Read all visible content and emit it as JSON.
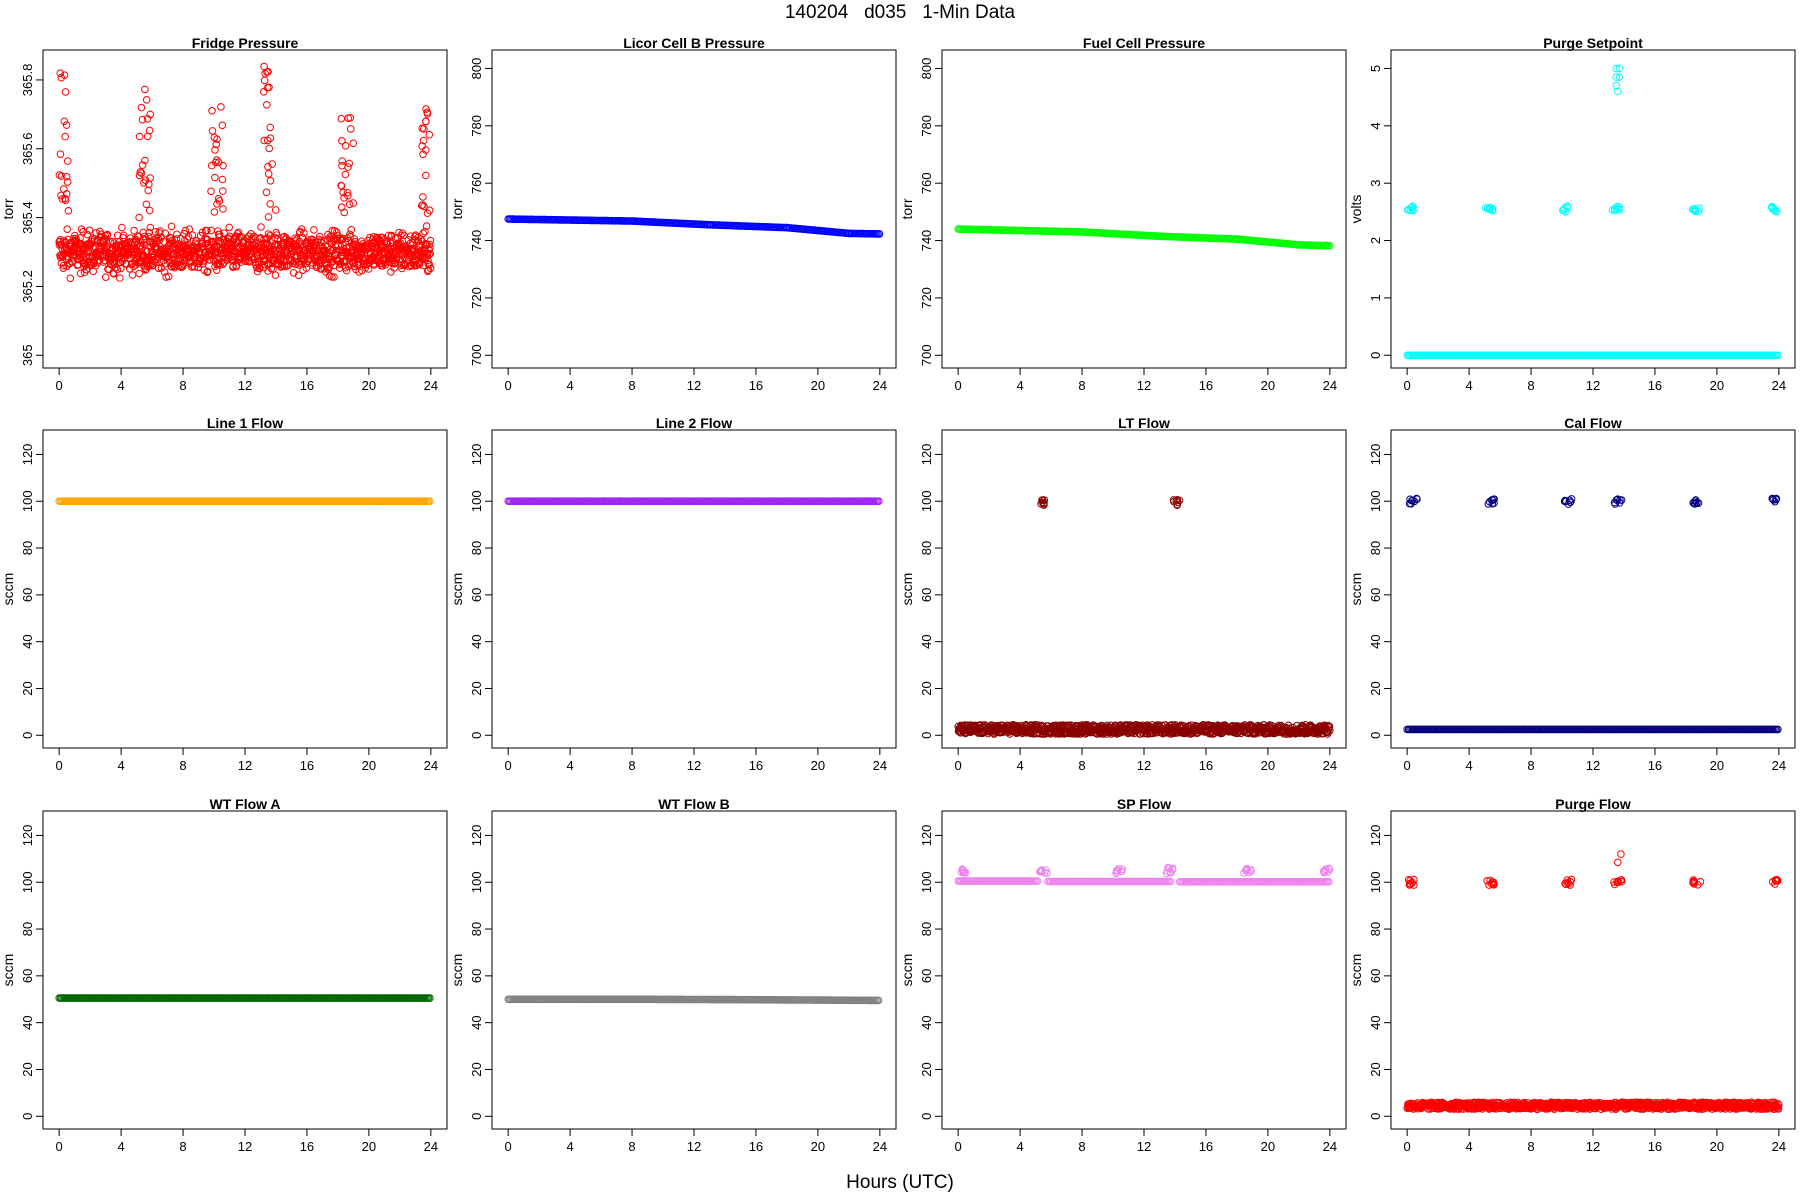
{
  "figure": {
    "title": "140204   d035   1-Min Data",
    "x_label": "Hours (UTC)"
  },
  "chart_data": [
    {
      "id": "fridge",
      "type": "scatter",
      "title": "Fridge Pressure",
      "ylabel": "torr",
      "xlim": [
        0,
        24
      ],
      "ylim": [
        365.0,
        365.85
      ],
      "yticks": [
        365.0,
        365.2,
        365.4,
        365.6,
        365.8
      ],
      "xticks": [
        0,
        4,
        8,
        12,
        16,
        20,
        24
      ],
      "color": "#ff0000",
      "series": [
        {
          "kind": "noise",
          "baseline": 365.3,
          "spread": 0.1,
          "spikes": [
            [
              0.2,
              365.82
            ],
            [
              5.5,
              365.78
            ],
            [
              10.2,
              365.73
            ],
            [
              13.6,
              365.84
            ],
            [
              18.6,
              365.7
            ],
            [
              23.8,
              365.73
            ]
          ]
        }
      ]
    },
    {
      "id": "licor",
      "type": "scatter",
      "title": "Licor Cell B Pressure",
      "ylabel": "torr",
      "xlim": [
        0,
        24
      ],
      "ylim": [
        700,
        802
      ],
      "yticks": [
        700,
        720,
        740,
        760,
        780,
        800
      ],
      "xticks": [
        0,
        4,
        8,
        12,
        16,
        20,
        24
      ],
      "color": "#0000ff",
      "series": [
        {
          "kind": "line",
          "points": [
            [
              0,
              747.5
            ],
            [
              8,
              746.8
            ],
            [
              13,
              745.5
            ],
            [
              18,
              744.5
            ],
            [
              22,
              742.5
            ],
            [
              24,
              742.3
            ]
          ]
        }
      ]
    },
    {
      "id": "fuel",
      "type": "scatter",
      "title": "Fuel Cell Pressure",
      "ylabel": "torr",
      "xlim": [
        0,
        24
      ],
      "ylim": [
        700,
        802
      ],
      "yticks": [
        700,
        720,
        740,
        760,
        780,
        800
      ],
      "xticks": [
        0,
        4,
        8,
        12,
        16,
        20,
        24
      ],
      "color": "#00ff00",
      "series": [
        {
          "kind": "line",
          "points": [
            [
              0,
              744
            ],
            [
              8,
              743
            ],
            [
              13,
              741.5
            ],
            [
              18,
              740.5
            ],
            [
              22,
              738.5
            ],
            [
              24,
              738.2
            ]
          ]
        }
      ]
    },
    {
      "id": "purge_sp",
      "type": "scatter",
      "title": "Purge Setpoint",
      "ylabel": "volts",
      "xlim": [
        0,
        24
      ],
      "ylim": [
        0,
        5.1
      ],
      "yticks": [
        0,
        1,
        2,
        3,
        4,
        5
      ],
      "xticks": [
        0,
        4,
        8,
        12,
        16,
        20,
        24
      ],
      "color": "#00ffff",
      "series": [
        {
          "kind": "line",
          "points": [
            [
              0,
              0
            ],
            [
              24,
              0
            ]
          ]
        },
        {
          "kind": "clusters",
          "x": [
            0.2,
            5.3,
            10.3,
            13.5,
            18.7,
            23.7
          ],
          "y": 2.55
        },
        {
          "kind": "points",
          "points": [
            [
              13.5,
              5.0
            ],
            [
              13.7,
              5.0
            ],
            [
              13.5,
              4.85
            ],
            [
              13.7,
              4.85
            ],
            [
              13.5,
              4.7
            ],
            [
              13.6,
              4.6
            ]
          ]
        }
      ]
    },
    {
      "id": "line1",
      "type": "scatter",
      "title": "Line 1 Flow",
      "ylabel": "sccm",
      "xlim": [
        0,
        24
      ],
      "ylim": [
        0,
        125
      ],
      "yticks": [
        0,
        20,
        40,
        60,
        80,
        100,
        120
      ],
      "xticks": [
        0,
        4,
        8,
        12,
        16,
        20,
        24
      ],
      "color": "#ffa500",
      "series": [
        {
          "kind": "line",
          "points": [
            [
              0,
              100
            ],
            [
              24,
              100
            ]
          ]
        }
      ]
    },
    {
      "id": "line2",
      "type": "scatter",
      "title": "Line 2 Flow",
      "ylabel": "sccm",
      "xlim": [
        0,
        24
      ],
      "ylim": [
        0,
        125
      ],
      "yticks": [
        0,
        20,
        40,
        60,
        80,
        100,
        120
      ],
      "xticks": [
        0,
        4,
        8,
        12,
        16,
        20,
        24
      ],
      "color": "#a020f0",
      "series": [
        {
          "kind": "line",
          "points": [
            [
              0,
              100
            ],
            [
              24,
              100
            ]
          ]
        }
      ]
    },
    {
      "id": "lt",
      "type": "scatter",
      "title": "LT Flow",
      "ylabel": "sccm",
      "xlim": [
        0,
        24
      ],
      "ylim": [
        0,
        125
      ],
      "yticks": [
        0,
        20,
        40,
        60,
        80,
        100,
        120
      ],
      "xticks": [
        0,
        4,
        8,
        12,
        16,
        20,
        24
      ],
      "color": "#8b0000",
      "series": [
        {
          "kind": "band",
          "y": 2.5,
          "height": 4
        },
        {
          "kind": "clusters",
          "x": [
            5.6,
            14.1
          ],
          "y": 99.5
        }
      ]
    },
    {
      "id": "cal",
      "type": "scatter",
      "title": "Cal Flow",
      "ylabel": "sccm",
      "xlim": [
        0,
        24
      ],
      "ylim": [
        0,
        125
      ],
      "yticks": [
        0,
        20,
        40,
        60,
        80,
        100,
        120
      ],
      "xticks": [
        0,
        4,
        8,
        12,
        16,
        20,
        24
      ],
      "color": "#000080",
      "series": [
        {
          "kind": "line",
          "points": [
            [
              0,
              2.5
            ],
            [
              24,
              2.5
            ]
          ]
        },
        {
          "kind": "clusters",
          "x": [
            0.4,
            5.4,
            10.4,
            13.6,
            18.7,
            23.8
          ],
          "y": 100
        }
      ]
    },
    {
      "id": "wta",
      "type": "scatter",
      "title": "WT Flow A",
      "ylabel": "sccm",
      "xlim": [
        0,
        24
      ],
      "ylim": [
        0,
        125
      ],
      "yticks": [
        0,
        20,
        40,
        60,
        80,
        100,
        120
      ],
      "xticks": [
        0,
        4,
        8,
        12,
        16,
        20,
        24
      ],
      "color": "#006400",
      "series": [
        {
          "kind": "line",
          "points": [
            [
              0,
              50.5
            ],
            [
              24,
              50.5
            ]
          ]
        }
      ]
    },
    {
      "id": "wtb",
      "type": "scatter",
      "title": "WT Flow B",
      "ylabel": "sccm",
      "xlim": [
        0,
        24
      ],
      "ylim": [
        0,
        125
      ],
      "yticks": [
        0,
        20,
        40,
        60,
        80,
        100,
        120
      ],
      "xticks": [
        0,
        4,
        8,
        12,
        16,
        20,
        24
      ],
      "color": "#808080",
      "series": [
        {
          "kind": "line",
          "points": [
            [
              0,
              50
            ],
            [
              8,
              50
            ],
            [
              16,
              49.8
            ],
            [
              24,
              49.5
            ]
          ]
        }
      ]
    },
    {
      "id": "sp",
      "type": "scatter",
      "title": "SP Flow",
      "ylabel": "sccm",
      "xlim": [
        0,
        24
      ],
      "ylim": [
        0,
        125
      ],
      "yticks": [
        0,
        20,
        40,
        60,
        80,
        100,
        120
      ],
      "xticks": [
        0,
        4,
        8,
        12,
        16,
        20,
        24
      ],
      "color": "#ee82ee",
      "series": [
        {
          "kind": "line",
          "points": [
            [
              0,
              100.5
            ],
            [
              5.2,
              100.5
            ]
          ]
        },
        {
          "kind": "line",
          "points": [
            [
              5.8,
              100.3
            ],
            [
              13.8,
              100.3
            ]
          ]
        },
        {
          "kind": "line",
          "points": [
            [
              14.3,
              100.2
            ],
            [
              24,
              100.2
            ]
          ]
        },
        {
          "kind": "clusters",
          "x": [
            0.4,
            5.5,
            10.4,
            13.7,
            18.7,
            23.8
          ],
          "y": 105
        }
      ]
    },
    {
      "id": "purge_flow",
      "type": "scatter",
      "title": "Purge Flow",
      "ylabel": "sccm",
      "xlim": [
        0,
        24
      ],
      "ylim": [
        0,
        125
      ],
      "yticks": [
        0,
        20,
        40,
        60,
        80,
        100,
        120
      ],
      "xticks": [
        0,
        4,
        8,
        12,
        16,
        20,
        24
      ],
      "color": "#ff0000",
      "series": [
        {
          "kind": "band",
          "y": 4.5,
          "height": 3
        },
        {
          "kind": "clusters",
          "x": [
            0.3,
            5.4,
            10.4,
            13.6,
            18.7,
            23.8
          ],
          "y": 100
        },
        {
          "kind": "points",
          "points": [
            [
              13.6,
              108.5
            ],
            [
              13.8,
              112
            ]
          ]
        }
      ]
    }
  ]
}
